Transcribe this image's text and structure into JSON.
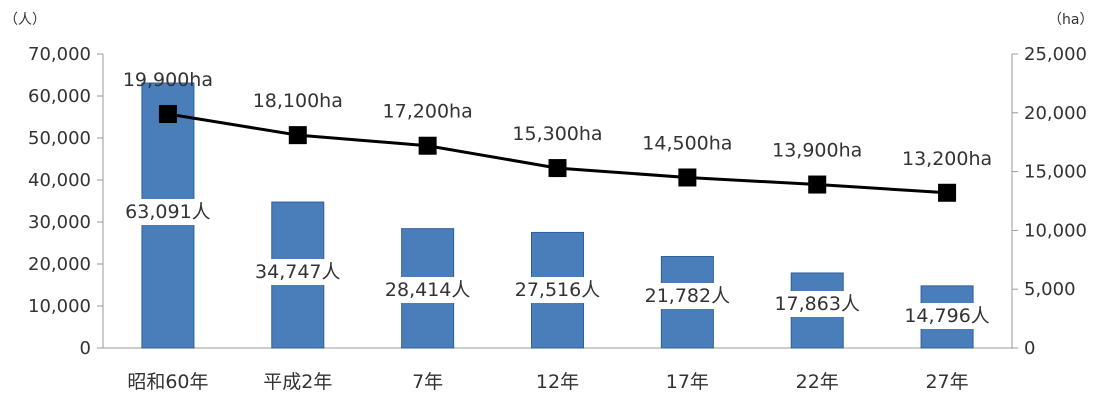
{
  "chart_data": {
    "type": "bar",
    "categories": [
      "昭和60年",
      "平成2年",
      "7年",
      "12年",
      "17年",
      "22年",
      "27年"
    ],
    "series": [
      {
        "type": "bar",
        "axis": "left",
        "values": [
          63091,
          34747,
          28414,
          27516,
          21782,
          17863,
          14796
        ],
        "labels": [
          "63,091人",
          "34,747人",
          "28,414人",
          "27,516人",
          "21,782人",
          "17,863人",
          "14,796人"
        ],
        "color": "#4a7ebb"
      },
      {
        "type": "line",
        "axis": "right",
        "values": [
          19900,
          18100,
          17200,
          15300,
          14500,
          13900,
          13200
        ],
        "labels": [
          "19,900ha",
          "18,100ha",
          "17,200ha",
          "15,300ha",
          "14,500ha",
          "13,900ha",
          "13,200ha"
        ],
        "color": "#000000"
      }
    ],
    "y_left": {
      "unit": "（人）",
      "range": [
        0,
        70000
      ],
      "ticks": [
        "0",
        "10,000",
        "20,000",
        "30,000",
        "40,000",
        "50,000",
        "60,000",
        "70,000"
      ]
    },
    "y_right": {
      "unit": "（ha）",
      "range": [
        0,
        25000
      ],
      "ticks": [
        "0",
        "5,000",
        "10,000",
        "15,000",
        "20,000",
        "25,000"
      ]
    },
    "grid": false,
    "legend": "none"
  }
}
